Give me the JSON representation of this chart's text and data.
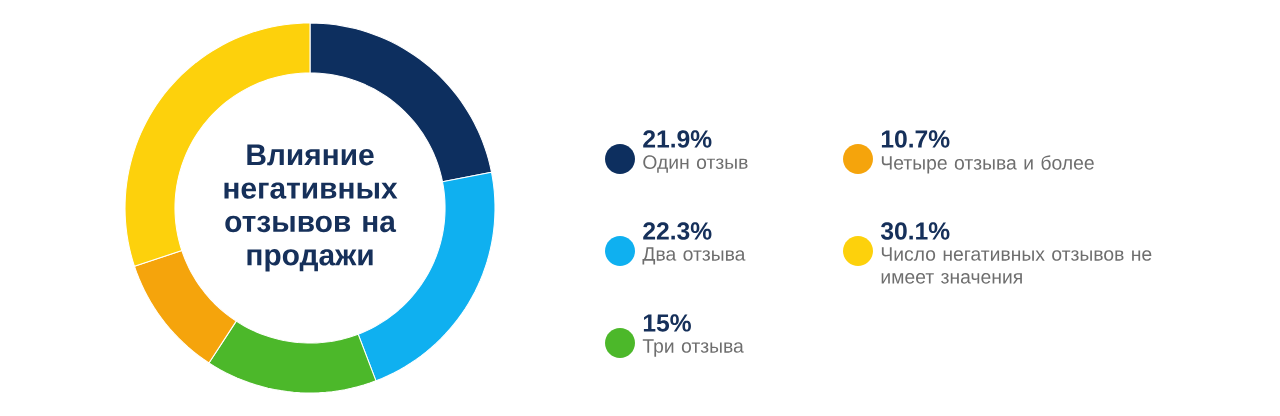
{
  "chart_data": {
    "type": "donut",
    "title": "Влияние негативных отзывов на продажи",
    "categories": [
      "Один отзыв",
      "Два отзыва",
      "Три отзыва",
      "Четыре отзыва и более",
      "Число негативных отзывов не имеет значения"
    ],
    "values": [
      21.9,
      22.3,
      15,
      10.7,
      30.1
    ],
    "value_labels": [
      "21.9%",
      "22.3%",
      "15%",
      "10.7%",
      "30.1%"
    ],
    "colors": [
      "#0d2f5f",
      "#0fb0f0",
      "#4cb82a",
      "#f5a40c",
      "#fdd10c"
    ],
    "legend": "right"
  }
}
